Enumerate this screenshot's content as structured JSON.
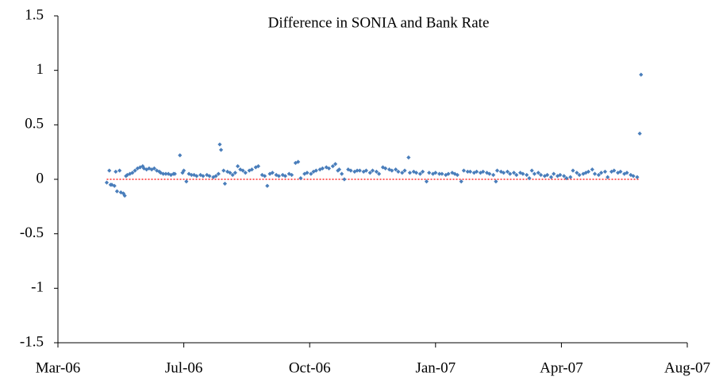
{
  "chart_data": {
    "type": "scatter",
    "title": "Difference in SONIA and Bank Rate",
    "x": [
      38844,
      38846,
      38847,
      38848,
      38850,
      38851,
      38852,
      38854,
      38855,
      38857,
      38858,
      38859,
      38860,
      38862,
      38864,
      38866,
      38868,
      38870,
      38872,
      38873,
      38875,
      38877,
      38879,
      38881,
      38883,
      38885,
      38886,
      38888,
      38890,
      38892,
      38894,
      38896,
      38897,
      38901,
      38903,
      38904,
      38906,
      38908,
      38910,
      38912,
      38914,
      38917,
      38919,
      38922,
      38924,
      38927,
      38929,
      38931,
      38932,
      38933,
      38935,
      38936,
      38938,
      38940,
      38942,
      38944,
      38946,
      38948,
      38950,
      38952,
      38955,
      38957,
      38960,
      38962,
      38965,
      38967,
      38969,
      38971,
      38973,
      38976,
      38978,
      38981,
      38983,
      38986,
      38988,
      38991,
      38993,
      38995,
      38998,
      39000,
      39003,
      39005,
      39007,
      39010,
      39012,
      39015,
      39017,
      39020,
      39022,
      39024,
      39025,
      39027,
      39029,
      39032,
      39034,
      39037,
      39039,
      39041,
      39044,
      39046,
      39049,
      39051,
      39054,
      39056,
      39059,
      39061,
      39064,
      39066,
      39069,
      39071,
      39074,
      39076,
      39079,
      39080,
      39083,
      39085,
      39088,
      39090,
      39093,
      39095,
      39098,
      39100,
      39103,
      39105,
      39108,
      39110,
      39113,
      39115,
      39117,
      39120,
      39122,
      39125,
      39127,
      39130,
      39132,
      39135,
      39137,
      39140,
      39142,
      39145,
      39147,
      39148,
      39151,
      39153,
      39156,
      39158,
      39161,
      39163,
      39166,
      39168,
      39171,
      39173,
      39175,
      39177,
      39180,
      39182,
      39185,
      39187,
      39190,
      39192,
      39195,
      39197,
      39200,
      39202,
      39205,
      39207,
      39210,
      39212,
      39215,
      39217,
      39219,
      39222,
      39224,
      39227,
      39229,
      39232,
      39234,
      39237,
      39239,
      39242,
      39244,
      39247,
      39249,
      39252,
      39254,
      39257,
      39259,
      39260
    ],
    "values": [
      -0.03,
      0.08,
      -0.05,
      -0.05,
      -0.06,
      0.07,
      -0.11,
      0.08,
      -0.12,
      -0.13,
      -0.15,
      0.03,
      0.04,
      0.05,
      0.06,
      0.08,
      0.1,
      0.11,
      0.12,
      0.1,
      0.09,
      0.1,
      0.09,
      0.1,
      0.08,
      0.07,
      0.06,
      0.05,
      0.05,
      0.05,
      0.04,
      0.05,
      0.05,
      0.22,
      0.06,
      0.08,
      -0.02,
      0.05,
      0.04,
      0.04,
      0.03,
      0.04,
      0.03,
      0.04,
      0.03,
      0.02,
      0.03,
      0.05,
      0.32,
      0.27,
      0.08,
      -0.04,
      0.07,
      0.06,
      0.04,
      0.06,
      0.12,
      0.09,
      0.08,
      0.06,
      0.08,
      0.09,
      0.11,
      0.12,
      0.04,
      0.03,
      -0.06,
      0.05,
      0.06,
      0.04,
      0.03,
      0.04,
      0.03,
      0.05,
      0.04,
      0.15,
      0.16,
      0.01,
      0.05,
      0.06,
      0.05,
      0.07,
      0.08,
      0.09,
      0.1,
      0.11,
      0.1,
      0.12,
      0.14,
      0.08,
      0.09,
      0.05,
      0.0,
      0.09,
      0.08,
      0.07,
      0.08,
      0.08,
      0.07,
      0.08,
      0.06,
      0.08,
      0.07,
      0.05,
      0.11,
      0.1,
      0.09,
      0.08,
      0.09,
      0.07,
      0.06,
      0.08,
      0.2,
      0.06,
      0.07,
      0.06,
      0.05,
      0.07,
      -0.02,
      0.06,
      0.05,
      0.06,
      0.05,
      0.05,
      0.04,
      0.05,
      0.06,
      0.05,
      0.04,
      -0.02,
      0.08,
      0.07,
      0.07,
      0.06,
      0.07,
      0.06,
      0.07,
      0.06,
      0.05,
      0.04,
      -0.02,
      0.08,
      0.07,
      0.06,
      0.07,
      0.05,
      0.06,
      0.04,
      0.06,
      0.05,
      0.04,
      0.01,
      0.08,
      0.05,
      0.06,
      0.04,
      0.03,
      0.04,
      0.02,
      0.05,
      0.03,
      0.04,
      0.03,
      0.01,
      0.02,
      0.08,
      0.06,
      0.04,
      0.05,
      0.06,
      0.07,
      0.09,
      0.05,
      0.04,
      0.06,
      0.07,
      0.02,
      0.07,
      0.08,
      0.06,
      0.07,
      0.05,
      0.06,
      0.04,
      0.03,
      0.02,
      0.42,
      0.96
    ],
    "color": "#4a7ebb",
    "reference_line": {
      "y": 0,
      "x": [
        38844,
        39259
      ],
      "color": "#ff0000"
    },
    "xlim": [
      38806,
      39296
    ],
    "xticks": [
      {
        "value": 38806,
        "label": "Mar-06"
      },
      {
        "value": 38904,
        "label": "Jul-06"
      },
      {
        "value": 39002,
        "label": "Oct-06"
      },
      {
        "value": 39100,
        "label": "Jan-07"
      },
      {
        "value": 39198,
        "label": "Apr-07"
      },
      {
        "value": 39296,
        "label": "Aug-07"
      }
    ],
    "ylim": [
      -1.5,
      1.5
    ],
    "yticks": [
      1.5,
      1,
      0.5,
      0,
      -0.5,
      -1,
      -1.5
    ],
    "grid": false
  }
}
